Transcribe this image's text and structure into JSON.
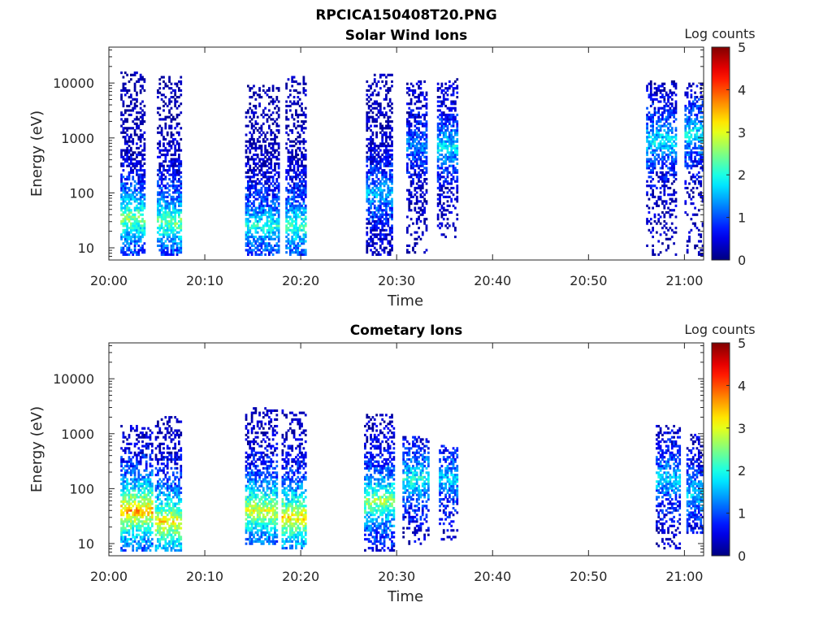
{
  "figure": {
    "title": "RPCICA150408T20.PNG"
  },
  "chart_data": [
    {
      "type": "heatmap",
      "title": "Solar Wind Ions",
      "xlabel": "Time",
      "ylabel": "Energy (eV)",
      "x_ticks": [
        "20:00",
        "20:10",
        "20:20",
        "20:30",
        "20:40",
        "20:50",
        "21:00"
      ],
      "x_tick_minutes": [
        0,
        10,
        20,
        30,
        40,
        50,
        60
      ],
      "xlim_minutes": [
        0,
        62
      ],
      "y_ticks": [
        10,
        100,
        1000,
        10000
      ],
      "y_tick_labels": [
        "10",
        "100",
        "1000",
        "10000"
      ],
      "ylim": [
        6,
        45000
      ],
      "y_scale": "log",
      "colorbar": {
        "label": "Log counts",
        "ticks": [
          "0",
          "1",
          "2",
          "3",
          "4",
          "5"
        ],
        "range": [
          0,
          5
        ],
        "colormap": "jet"
      },
      "bursts": [
        {
          "t_start": 1.2,
          "t_end": 3.8,
          "e_low": 7,
          "e_high": 16000,
          "peak_log": 2.6,
          "peak_energy": 35
        },
        {
          "t_start": 5.0,
          "t_end": 7.6,
          "e_low": 7,
          "e_high": 14000,
          "peak_log": 2.5,
          "peak_energy": 30
        },
        {
          "t_start": 14.2,
          "t_end": 17.8,
          "e_low": 7,
          "e_high": 9000,
          "peak_log": 2.0,
          "peak_energy": 25
        },
        {
          "t_start": 18.4,
          "t_end": 20.6,
          "e_low": 7,
          "e_high": 13000,
          "peak_log": 2.3,
          "peak_energy": 25
        },
        {
          "t_start": 26.8,
          "t_end": 29.6,
          "e_low": 7,
          "e_high": 15000,
          "peak_log": 1.6,
          "peak_energy": 100
        },
        {
          "t_start": 31.0,
          "t_end": 33.2,
          "e_low": 7,
          "e_high": 11000,
          "peak_log": 1.3,
          "peak_energy": 700
        },
        {
          "t_start": 34.2,
          "t_end": 36.4,
          "e_low": 15,
          "e_high": 12000,
          "peak_log": 1.8,
          "peak_energy": 700
        },
        {
          "t_start": 56.0,
          "t_end": 59.2,
          "e_low": 7,
          "e_high": 11000,
          "peak_log": 1.8,
          "peak_energy": 900
        },
        {
          "t_start": 60.0,
          "t_end": 62.0,
          "e_low": 7,
          "e_high": 10000,
          "peak_log": 1.9,
          "peak_energy": 1200
        }
      ]
    },
    {
      "type": "heatmap",
      "title": "Cometary Ions",
      "xlabel": "Time",
      "ylabel": "Energy (eV)",
      "x_ticks": [
        "20:00",
        "20:10",
        "20:20",
        "20:30",
        "20:40",
        "20:50",
        "21:00"
      ],
      "x_tick_minutes": [
        0,
        10,
        20,
        30,
        40,
        50,
        60
      ],
      "xlim_minutes": [
        0,
        62
      ],
      "y_ticks": [
        10,
        100,
        1000,
        10000
      ],
      "y_tick_labels": [
        "10",
        "100",
        "1000",
        "10000"
      ],
      "ylim": [
        6,
        45000
      ],
      "y_scale": "log",
      "colorbar": {
        "label": "Log counts",
        "ticks": [
          "0",
          "1",
          "2",
          "3",
          "4",
          "5"
        ],
        "range": [
          0,
          5
        ],
        "colormap": "jet"
      },
      "bursts": [
        {
          "t_start": 1.2,
          "t_end": 4.6,
          "e_low": 7,
          "e_high": 1500,
          "peak_log": 3.6,
          "peak_energy": 40
        },
        {
          "t_start": 4.8,
          "t_end": 7.6,
          "e_low": 7,
          "e_high": 2000,
          "peak_log": 3.3,
          "peak_energy": 25
        },
        {
          "t_start": 14.2,
          "t_end": 17.6,
          "e_low": 10,
          "e_high": 3000,
          "peak_log": 3.0,
          "peak_energy": 40
        },
        {
          "t_start": 18.0,
          "t_end": 20.6,
          "e_low": 8,
          "e_high": 2800,
          "peak_log": 3.3,
          "peak_energy": 30
        },
        {
          "t_start": 26.6,
          "t_end": 29.8,
          "e_low": 7,
          "e_high": 2200,
          "peak_log": 2.7,
          "peak_energy": 60
        },
        {
          "t_start": 30.6,
          "t_end": 33.4,
          "e_low": 10,
          "e_high": 900,
          "peak_log": 2.0,
          "peak_energy": 150
        },
        {
          "t_start": 34.4,
          "t_end": 36.4,
          "e_low": 12,
          "e_high": 600,
          "peak_log": 1.7,
          "peak_energy": 150
        },
        {
          "t_start": 57.0,
          "t_end": 59.6,
          "e_low": 8,
          "e_high": 1500,
          "peak_log": 1.7,
          "peak_energy": 150
        },
        {
          "t_start": 60.2,
          "t_end": 62.0,
          "e_low": 15,
          "e_high": 1000,
          "peak_log": 1.7,
          "peak_energy": 80
        }
      ]
    }
  ]
}
